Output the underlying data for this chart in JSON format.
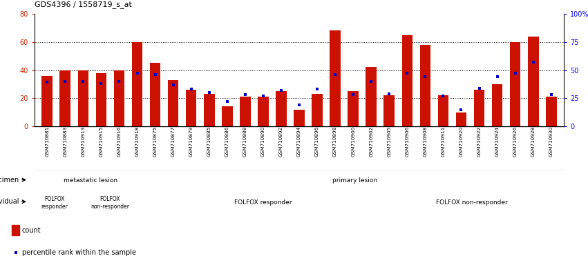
{
  "title": "GDS4396 / 1558719_s_at",
  "samples": [
    "GSM710881",
    "GSM710883",
    "GSM710913",
    "GSM710915",
    "GSM710916",
    "GSM710918",
    "GSM710875",
    "GSM710877",
    "GSM710879",
    "GSM710885",
    "GSM710886",
    "GSM710888",
    "GSM710890",
    "GSM710892",
    "GSM710894",
    "GSM710896",
    "GSM710898",
    "GSM710900",
    "GSM710902",
    "GSM710905",
    "GSM710906",
    "GSM710908",
    "GSM710911",
    "GSM710920",
    "GSM710922",
    "GSM710924",
    "GSM710926",
    "GSM710928",
    "GSM710930"
  ],
  "counts": [
    36,
    40,
    40,
    38,
    40,
    60,
    45,
    33,
    26,
    23,
    14,
    21,
    21,
    25,
    12,
    23,
    68,
    25,
    42,
    22,
    65,
    58,
    22,
    10,
    26,
    30,
    60,
    64,
    21
  ],
  "percentiles": [
    39,
    40,
    40,
    38,
    40,
    47,
    46,
    37,
    33,
    30,
    22,
    28,
    27,
    32,
    19,
    33,
    46,
    28,
    40,
    29,
    47,
    44,
    27,
    15,
    34,
    44,
    47,
    57,
    28
  ],
  "left_ylim": [
    0,
    80
  ],
  "right_ylim": [
    0,
    100
  ],
  "left_yticks": [
    0,
    20,
    40,
    60,
    80
  ],
  "right_yticks": [
    0,
    25,
    50,
    75,
    100
  ],
  "bar_color": "#cc1100",
  "dot_color": "#0000cc",
  "specimen_groups": [
    {
      "label": "metastatic lesion",
      "start": 0,
      "end": 6,
      "color": "#aaddaa"
    },
    {
      "label": "primary lesion",
      "start": 6,
      "end": 29,
      "color": "#33dd55"
    }
  ],
  "individual_groups": [
    {
      "label": "FOLFOX\nresponder",
      "start": 0,
      "end": 2,
      "color": "#ffbbff"
    },
    {
      "label": "FOLFOX\nnon-responder",
      "start": 2,
      "end": 6,
      "color": "#dd66dd"
    },
    {
      "label": "FOLFOX responder",
      "start": 6,
      "end": 19,
      "color": "#ffbbff"
    },
    {
      "label": "FOLFOX non-responder",
      "start": 19,
      "end": 29,
      "color": "#dd66dd"
    }
  ],
  "xtick_bg": "#cccccc",
  "legend_count_label": "count",
  "legend_pct_label": "percentile rank within the sample"
}
